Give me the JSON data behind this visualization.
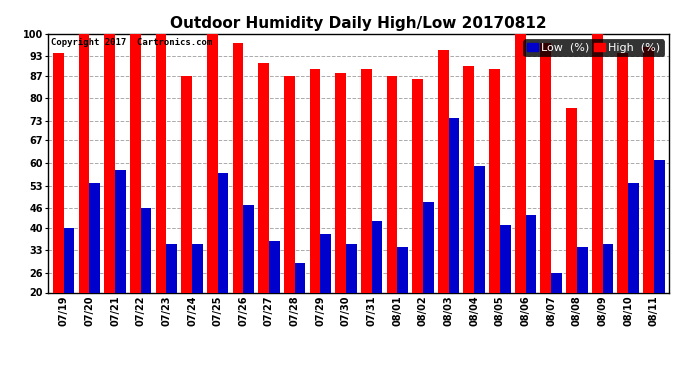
{
  "title": "Outdoor Humidity Daily High/Low 20170812",
  "copyright": "Copyright 2017  Cartronics.com",
  "categories": [
    "07/19",
    "07/20",
    "07/21",
    "07/22",
    "07/23",
    "07/24",
    "07/25",
    "07/26",
    "07/27",
    "07/28",
    "07/29",
    "07/30",
    "07/31",
    "08/01",
    "08/02",
    "08/03",
    "08/04",
    "08/05",
    "08/06",
    "08/07",
    "08/08",
    "08/09",
    "08/10",
    "08/11"
  ],
  "high_values": [
    94,
    100,
    100,
    100,
    100,
    87,
    100,
    97,
    91,
    87,
    89,
    88,
    89,
    87,
    86,
    95,
    90,
    89,
    100,
    97,
    77,
    100,
    94,
    96
  ],
  "low_values": [
    40,
    54,
    58,
    46,
    35,
    35,
    57,
    47,
    36,
    29,
    38,
    35,
    42,
    34,
    48,
    74,
    59,
    41,
    44,
    26,
    34,
    35,
    54,
    61
  ],
  "high_color": "#ff0000",
  "low_color": "#0000cc",
  "bg_color": "#ffffff",
  "grid_color": "#aaaaaa",
  "yticks": [
    20,
    26,
    33,
    40,
    46,
    53,
    60,
    67,
    73,
    80,
    87,
    93,
    100
  ],
  "ymin": 20,
  "ymax": 100,
  "bar_width": 0.42,
  "title_fontsize": 11,
  "tick_fontsize": 7,
  "legend_fontsize": 8
}
